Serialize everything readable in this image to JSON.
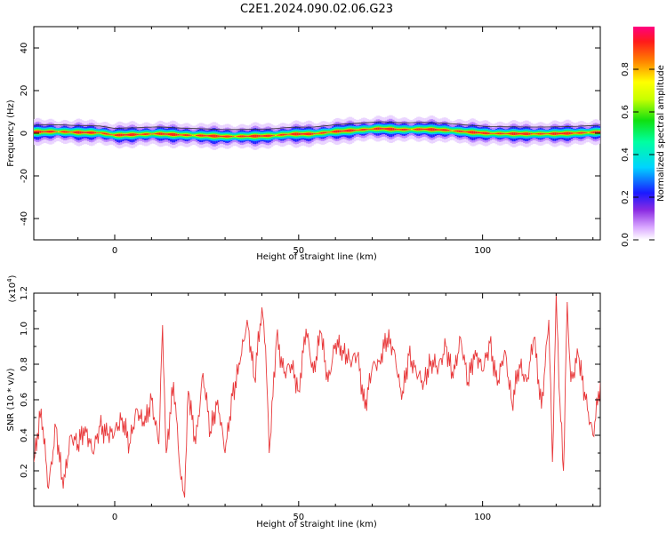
{
  "title": "C2E1.2024.090.02.06.G23",
  "chart_data": [
    {
      "type": "heatmap",
      "xlabel": "Height of straight line (km)",
      "ylabel": "Frequency (Hz)",
      "xlim": [
        -22,
        132
      ],
      "ylim": [
        -50,
        50
      ],
      "xticks": [
        0,
        50,
        100
      ],
      "yticks": [
        -40,
        -20,
        0,
        20,
        40
      ],
      "track": {
        "x": [
          -22,
          -16,
          -10,
          -4,
          0,
          6,
          12,
          18,
          24,
          30,
          36,
          42,
          48,
          54,
          60,
          66,
          72,
          78,
          84,
          90,
          96,
          102,
          108,
          114,
          120,
          126,
          132
        ],
        "y": [
          0.6,
          0.8,
          0.4,
          0.2,
          -0.9,
          -0.6,
          -0.2,
          -0.8,
          -1.1,
          -1.5,
          -1.4,
          -1.2,
          -0.4,
          -0.3,
          0.8,
          1.5,
          2.2,
          1.7,
          1.9,
          1.5,
          0.6,
          -0.1,
          -0.2,
          -0.3,
          -0.2,
          0.1,
          0.6
        ]
      },
      "colorbar": {
        "label": "Normalized spectral amplitude",
        "range": [
          0,
          1
        ],
        "ticks": [
          "0.0",
          "0.2",
          "0.4",
          "0.6",
          "0.8"
        ]
      }
    },
    {
      "type": "line",
      "xlabel": "Height of straight line (km)",
      "ylabel": "SNR (10 * v/v)",
      "scale_label": "(x10",
      "scale_exp": "4",
      "scale_close": ")",
      "xlim": [
        -22,
        132
      ],
      "ylim": [
        0,
        1.2
      ],
      "xticks": [
        0,
        50,
        100
      ],
      "yticks": [
        "0.2",
        "0.4",
        "0.6",
        "0.8",
        "1.0",
        "1.2"
      ],
      "color": "#e8393b",
      "series": [
        {
          "x": [
            -22,
            -20,
            -18,
            -16,
            -14,
            -12,
            -10,
            -8,
            -6,
            -4,
            -2,
            0,
            2,
            4,
            6,
            8,
            10,
            12,
            13,
            14,
            16,
            18,
            19,
            20,
            22,
            24,
            26,
            28,
            30,
            32,
            34,
            36,
            38,
            40,
            41,
            42,
            44,
            46,
            48,
            50,
            52,
            54,
            56,
            58,
            60,
            62,
            64,
            66,
            68,
            70,
            72,
            74,
            76,
            78,
            80,
            82,
            84,
            86,
            88,
            90,
            92,
            94,
            96,
            98,
            100,
            102,
            104,
            106,
            108,
            110,
            112,
            114,
            116,
            118,
            119,
            120,
            121,
            122,
            123,
            124,
            126,
            128,
            130,
            132
          ],
          "values": [
            0.25,
            0.55,
            0.1,
            0.45,
            0.1,
            0.4,
            0.35,
            0.45,
            0.3,
            0.45,
            0.4,
            0.42,
            0.5,
            0.35,
            0.55,
            0.45,
            0.6,
            0.35,
            1.02,
            0.3,
            0.7,
            0.15,
            0.05,
            0.65,
            0.35,
            0.75,
            0.42,
            0.6,
            0.3,
            0.62,
            0.8,
            1.05,
            0.72,
            1.12,
            0.9,
            0.3,
            0.95,
            0.75,
            0.8,
            0.65,
            1.0,
            0.75,
            0.98,
            0.7,
            0.92,
            0.88,
            0.82,
            0.85,
            0.55,
            0.78,
            0.82,
            0.95,
            0.88,
            0.6,
            0.85,
            0.75,
            0.7,
            0.82,
            0.78,
            0.9,
            0.72,
            0.95,
            0.7,
            0.88,
            0.76,
            0.92,
            0.68,
            0.88,
            0.58,
            0.8,
            0.7,
            0.95,
            0.55,
            1.05,
            0.25,
            1.2,
            0.6,
            0.2,
            1.15,
            0.7,
            0.85,
            0.6,
            0.4,
            0.7
          ]
        }
      ]
    }
  ]
}
